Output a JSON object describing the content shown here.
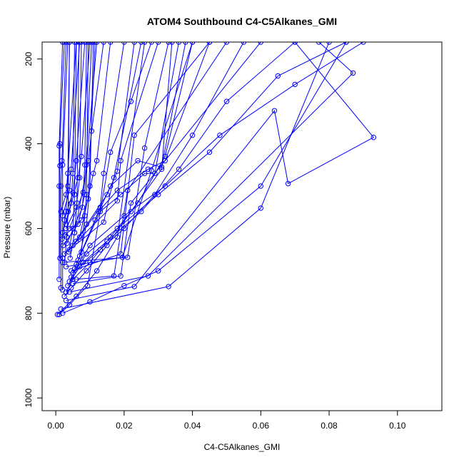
{
  "chart_data": {
    "type": "line",
    "title": "ATOM4 Southbound C4-C5Alkanes_GMI",
    "xlabel": "C4-C5Alkanes_GMI",
    "ylabel": "Pressure (mbar)",
    "xlim": [
      -0.004,
      0.113
    ],
    "ylim": [
      1030,
      160
    ],
    "y_axis_inverted": true,
    "x_ticks": [
      0.0,
      0.02,
      0.04,
      0.06,
      0.08,
      0.1
    ],
    "x_tick_labels": [
      "0.00",
      "0.02",
      "0.04",
      "0.06",
      "0.08",
      "0.10"
    ],
    "y_ticks": [
      200,
      400,
      600,
      800,
      1000
    ],
    "y_tick_labels": [
      "200",
      "400",
      "600",
      "800",
      "1000"
    ],
    "grid": false,
    "marker": "open-circle",
    "color": "#0000ff",
    "series": [
      {
        "x": [
          0.0005,
          0.006,
          0.012,
          0.018,
          0.026
        ],
        "y": [
          803,
          760,
          700,
          620,
          160
        ]
      },
      {
        "x": [
          0.001,
          0.004,
          0.0093,
          0.016,
          0.022,
          0.028
        ],
        "y": [
          803,
          780,
          735,
          420,
          300,
          160
        ]
      },
      {
        "x": [
          0.002,
          0.01,
          0.02,
          0.03,
          0.06,
          0.085
        ],
        "y": [
          800,
          773,
          735,
          700,
          500,
          160
        ]
      },
      {
        "x": [
          0.0015,
          0.033,
          0.06,
          0.08
        ],
        "y": [
          790,
          737,
          552,
          160
        ]
      },
      {
        "x": [
          0.003,
          0.023,
          0.064,
          0.068,
          0.093,
          0.07
        ],
        "y": [
          770,
          737,
          322,
          494,
          385,
          160
        ]
      },
      {
        "x": [
          0.004,
          0.027,
          0.087,
          0.077
        ],
        "y": [
          750,
          712,
          233,
          160
        ]
      },
      {
        "x": [
          0.005,
          0.019,
          0.022,
          0.06
        ],
        "y": [
          730,
          712,
          540,
          160
        ]
      },
      {
        "x": [
          0.006,
          0.017,
          0.021,
          0.05
        ],
        "y": [
          720,
          712,
          510,
          160
        ]
      },
      {
        "x": [
          0.0045,
          0.019,
          0.023,
          0.045
        ],
        "y": [
          700,
          660,
          380,
          160
        ]
      },
      {
        "x": [
          0.003,
          0.0195,
          0.028,
          0.04
        ],
        "y": [
          690,
          668,
          463,
          160
        ]
      },
      {
        "x": [
          0.002,
          0.021,
          0.026,
          0.033
        ],
        "y": [
          680,
          668,
          410,
          160
        ]
      },
      {
        "x": [
          0.0025,
          0.018,
          0.019,
          0.03
        ],
        "y": [
          660,
          535,
          440,
          160
        ]
      },
      {
        "x": [
          0.004,
          0.014,
          0.017,
          0.025
        ],
        "y": [
          650,
          585,
          480,
          160
        ]
      },
      {
        "x": [
          0.005,
          0.015,
          0.018,
          0.023
        ],
        "y": [
          640,
          520,
          465,
          160
        ]
      },
      {
        "x": [
          0.006,
          0.013,
          0.014,
          0.02
        ],
        "y": [
          630,
          550,
          470,
          160
        ]
      },
      {
        "x": [
          0.007,
          0.011,
          0.012,
          0.016
        ],
        "y": [
          620,
          470,
          440,
          160
        ]
      },
      {
        "x": [
          0.0055,
          0.0095,
          0.0105,
          0.014
        ],
        "y": [
          610,
          440,
          370,
          160
        ]
      },
      {
        "x": [
          0.004,
          0.008,
          0.009,
          0.012
        ],
        "y": [
          600,
          515,
          450,
          160
        ]
      },
      {
        "x": [
          0.003,
          0.0065,
          0.0075,
          0.01
        ],
        "y": [
          590,
          480,
          430,
          160
        ]
      },
      {
        "x": [
          0.0025,
          0.005,
          0.006,
          0.0085
        ],
        "y": [
          580,
          515,
          440,
          160
        ]
      },
      {
        "x": [
          0.002,
          0.004,
          0.0045,
          0.007
        ],
        "y": [
          570,
          510,
          460,
          160
        ]
      },
      {
        "x": [
          0.0015,
          0.003,
          0.0035,
          0.006
        ],
        "y": [
          560,
          520,
          470,
          160
        ]
      },
      {
        "x": [
          0.001,
          0.001,
          0.001,
          0.002
        ],
        "y": [
          720,
          500,
          405,
          160
        ]
      },
      {
        "x": [
          0.0012,
          0.0012,
          0.0012,
          0.0025
        ],
        "y": [
          670,
          452,
          400,
          160
        ]
      },
      {
        "x": [
          0.0015,
          0.0015,
          0.0018,
          0.003
        ],
        "y": [
          740,
          500,
          440,
          160
        ]
      },
      {
        "x": [
          0.002,
          0.002,
          0.002,
          0.0035
        ],
        "y": [
          745,
          670,
          450,
          160
        ]
      },
      {
        "x": [
          0.0025,
          0.0045,
          0.009,
          0.015,
          0.022,
          0.031,
          0.034
        ],
        "y": [
          760,
          740,
          700,
          640,
          560,
          460,
          160
        ]
      },
      {
        "x": [
          0.003,
          0.005,
          0.01,
          0.016,
          0.024,
          0.032,
          0.04
        ],
        "y": [
          750,
          720,
          680,
          620,
          540,
          430,
          160
        ]
      },
      {
        "x": [
          0.0035,
          0.007,
          0.013,
          0.02,
          0.029,
          0.04,
          0.055
        ],
        "y": [
          735,
          690,
          650,
          600,
          520,
          380,
          160
        ]
      },
      {
        "x": [
          0.004,
          0.008,
          0.015,
          0.025,
          0.036,
          0.05,
          0.07
        ],
        "y": [
          725,
          680,
          630,
          560,
          460,
          300,
          160
        ]
      },
      {
        "x": [
          0.0045,
          0.009,
          0.018,
          0.03,
          0.045,
          0.065,
          0.085
        ],
        "y": [
          715,
          660,
          600,
          520,
          420,
          240,
          160
        ]
      },
      {
        "x": [
          0.005,
          0.01,
          0.02,
          0.032,
          0.048,
          0.07,
          0.09
        ],
        "y": [
          705,
          640,
          570,
          500,
          380,
          260,
          160
        ]
      },
      {
        "x": [
          0.0055,
          0.0115,
          0.016,
          0.024,
          0.031,
          0.038
        ],
        "y": [
          695,
          580,
          500,
          440,
          455,
          160
        ]
      },
      {
        "x": [
          0.006,
          0.0125,
          0.018,
          0.027,
          0.032,
          0.045
        ],
        "y": [
          685,
          560,
          510,
          460,
          440,
          160
        ]
      },
      {
        "x": [
          0.0065,
          0.013,
          0.019,
          0.026,
          0.029,
          0.036
        ],
        "y": [
          675,
          560,
          520,
          470,
          470,
          160
        ]
      },
      {
        "x": [
          0.007,
          0.009,
          0.01,
          0.011
        ],
        "y": [
          665,
          590,
          500,
          160
        ]
      },
      {
        "x": [
          0.0075,
          0.0085,
          0.009,
          0.0095
        ],
        "y": [
          655,
          570,
          520,
          160
        ]
      },
      {
        "x": [
          0.003,
          0.006,
          0.007,
          0.0075
        ],
        "y": [
          600,
          550,
          480,
          160
        ]
      },
      {
        "x": [
          0.002,
          0.0045,
          0.005,
          0.0055
        ],
        "y": [
          610,
          540,
          470,
          160
        ]
      },
      {
        "x": [
          0.0018,
          0.003,
          0.0035,
          0.004
        ],
        "y": [
          625,
          560,
          500,
          160
        ]
      },
      {
        "x": [
          0.0022,
          0.0065,
          0.0085,
          0.0105
        ],
        "y": [
          640,
          590,
          520,
          160
        ]
      },
      {
        "x": [
          0.0028,
          0.0075,
          0.0095,
          0.0115
        ],
        "y": [
          615,
          580,
          530,
          160
        ]
      },
      {
        "x": [
          0.0033,
          0.0078,
          0.0085,
          0.009
        ],
        "y": [
          635,
          550,
          450,
          160
        ]
      },
      {
        "x": [
          0.0038,
          0.005,
          0.0055,
          0.006
        ],
        "y": [
          655,
          600,
          520,
          160
        ]
      },
      {
        "x": [
          0.0042,
          0.0055,
          0.0062,
          0.0068
        ],
        "y": [
          670,
          610,
          540,
          160
        ]
      },
      {
        "x": [
          0.0026,
          0.0032,
          0.0036,
          0.004
        ],
        "y": [
          680,
          620,
          560,
          160
        ]
      }
    ]
  }
}
